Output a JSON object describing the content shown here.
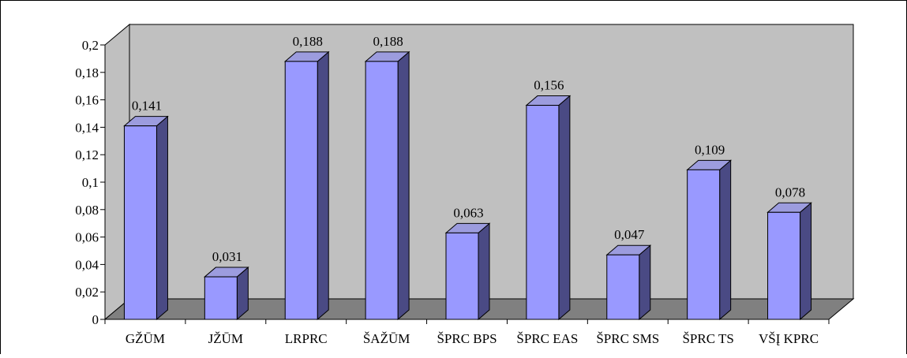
{
  "chart_data": {
    "type": "bar",
    "categories": [
      "GŽŪM",
      "JŽŪM",
      "LRPRC",
      "ŠAŽŪM",
      "ŠPRC BPS",
      "ŠPRC EAS",
      "ŠPRC SMS",
      "ŠPRC TS",
      "VŠĮ KPRC"
    ],
    "values": [
      0.141,
      0.031,
      0.188,
      0.188,
      0.063,
      0.156,
      0.047,
      0.109,
      0.078
    ],
    "data_labels": [
      "0,141",
      "0,031",
      "0,188",
      "0,188",
      "0,063",
      "0,156",
      "0,047",
      "0,109",
      "0,078"
    ],
    "ylim": [
      0,
      0.2
    ],
    "yticks": [
      0,
      0.02,
      0.04,
      0.06,
      0.08,
      0.1,
      0.12,
      0.14,
      0.16,
      0.18,
      0.2
    ],
    "ytick_labels": [
      "0",
      "0,02",
      "0,04",
      "0,06",
      "0,08",
      "0,1",
      "0,12",
      "0,14",
      "0,16",
      "0,18",
      "0,2"
    ],
    "title": "",
    "xlabel": "",
    "ylabel": "",
    "grid": false,
    "legend": "none",
    "style": "3d-column",
    "colors": {
      "bar_front": "#9999ff",
      "bar_top": "#9c9cde",
      "bar_side": "#4a4a84",
      "back_wall": "#c0c0c0",
      "left_wall": "#c0c0c0",
      "floor": "#808080",
      "outline": "#000000"
    }
  }
}
